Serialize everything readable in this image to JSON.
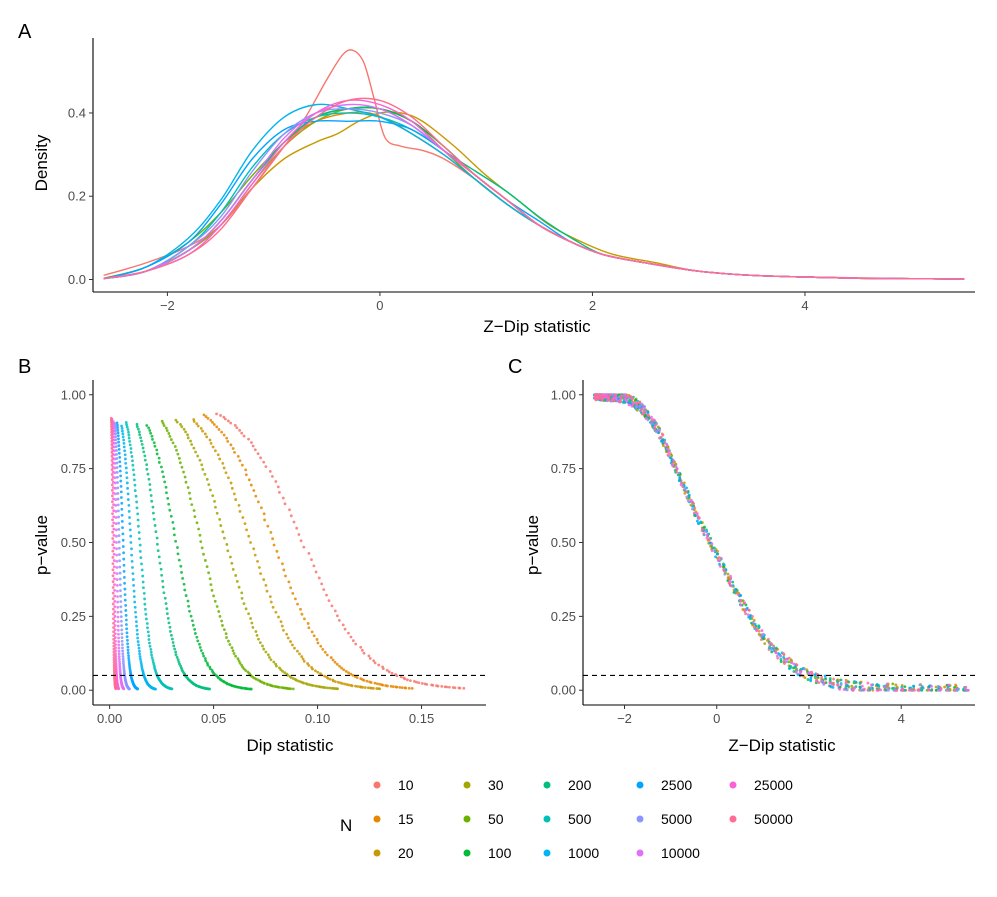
{
  "panels": {
    "a": "A",
    "b": "B",
    "c": "C"
  },
  "chart_data": [
    {
      "id": "A",
      "type": "line",
      "title": "",
      "xlabel": "Z−Dip statistic",
      "ylabel": "Density",
      "xlim": [
        -2.7,
        5.6
      ],
      "ylim": [
        -0.03,
        0.58
      ],
      "xticks": [
        -2,
        0,
        2,
        4
      ],
      "xtick_labels": [
        "−2",
        "0",
        "2",
        "4"
      ],
      "yticks": [
        0.0,
        0.2,
        0.4
      ],
      "ytick_labels": [
        "0.0",
        "0.2",
        "0.4"
      ],
      "grid": false,
      "series": [
        {
          "name": "10",
          "color": "#F8766D",
          "x": [
            -2.6,
            -2.2,
            -1.8,
            -1.5,
            -1.2,
            -0.9,
            -0.7,
            -0.5,
            -0.35,
            -0.25,
            -0.15,
            -0.05,
            0.05,
            0.2,
            0.4,
            0.6,
            0.9,
            1.2,
            1.5,
            1.8,
            2.1,
            2.5,
            3.0,
            3.5,
            4.0,
            4.5,
            5.0,
            5.5
          ],
          "y": [
            0.01,
            0.04,
            0.08,
            0.13,
            0.22,
            0.32,
            0.39,
            0.48,
            0.54,
            0.55,
            0.52,
            0.43,
            0.34,
            0.32,
            0.31,
            0.29,
            0.24,
            0.18,
            0.13,
            0.09,
            0.06,
            0.04,
            0.02,
            0.01,
            0.006,
            0.004,
            0.002,
            0.001
          ]
        },
        {
          "name": "15",
          "color": "#E58700",
          "x": [
            -2.6,
            -2.2,
            -1.8,
            -1.5,
            -1.2,
            -0.9,
            -0.6,
            -0.3,
            -0.1,
            0.1,
            0.3,
            0.6,
            0.9,
            1.2,
            1.5,
            1.8,
            2.1,
            2.5,
            3.0,
            3.5,
            4.0,
            4.5,
            5.0,
            5.5
          ],
          "y": [
            0.002,
            0.02,
            0.07,
            0.14,
            0.24,
            0.33,
            0.38,
            0.4,
            0.4,
            0.38,
            0.35,
            0.3,
            0.24,
            0.18,
            0.13,
            0.09,
            0.06,
            0.04,
            0.02,
            0.01,
            0.006,
            0.003,
            0.002,
            0.001
          ]
        },
        {
          "name": "20",
          "color": "#C99800",
          "x": [
            -2.6,
            -2.2,
            -1.8,
            -1.5,
            -1.2,
            -0.9,
            -0.6,
            -0.4,
            -0.2,
            0.0,
            0.2,
            0.4,
            0.7,
            1.0,
            1.3,
            1.6,
            1.9,
            2.2,
            2.6,
            3.0,
            3.5,
            4.0,
            4.5,
            5.0,
            5.5
          ],
          "y": [
            0.002,
            0.02,
            0.07,
            0.13,
            0.22,
            0.29,
            0.33,
            0.35,
            0.38,
            0.4,
            0.4,
            0.38,
            0.32,
            0.25,
            0.19,
            0.13,
            0.09,
            0.06,
            0.04,
            0.02,
            0.01,
            0.006,
            0.003,
            0.002,
            0.001
          ]
        },
        {
          "name": "30",
          "color": "#A3A500",
          "x": [
            -2.6,
            -2.2,
            -1.8,
            -1.5,
            -1.2,
            -0.9,
            -0.6,
            -0.3,
            0.0,
            0.3,
            0.6,
            0.9,
            1.2,
            1.5,
            1.8,
            2.1,
            2.5,
            3.0,
            3.5,
            4.0,
            4.5,
            5.0,
            5.5
          ],
          "y": [
            0.002,
            0.02,
            0.07,
            0.13,
            0.23,
            0.32,
            0.38,
            0.41,
            0.41,
            0.38,
            0.32,
            0.25,
            0.19,
            0.13,
            0.09,
            0.06,
            0.04,
            0.02,
            0.01,
            0.006,
            0.003,
            0.002,
            0.001
          ]
        },
        {
          "name": "50",
          "color": "#6BB100",
          "x": [
            -2.6,
            -2.2,
            -1.8,
            -1.5,
            -1.2,
            -0.9,
            -0.6,
            -0.3,
            0.0,
            0.3,
            0.6,
            0.9,
            1.2,
            1.5,
            1.8,
            2.1,
            2.5,
            3.0,
            3.5,
            4.0,
            4.5,
            5.0,
            5.5
          ],
          "y": [
            0.003,
            0.03,
            0.09,
            0.16,
            0.25,
            0.33,
            0.39,
            0.41,
            0.41,
            0.38,
            0.31,
            0.24,
            0.18,
            0.13,
            0.09,
            0.06,
            0.04,
            0.02,
            0.01,
            0.006,
            0.003,
            0.002,
            0.001
          ]
        },
        {
          "name": "100",
          "color": "#00BA38",
          "x": [
            -2.6,
            -2.2,
            -1.8,
            -1.5,
            -1.2,
            -0.9,
            -0.6,
            -0.3,
            0.0,
            0.3,
            0.6,
            0.9,
            1.2,
            1.5,
            1.8,
            2.1,
            2.5,
            3.0,
            3.5,
            4.0,
            4.5,
            5.0,
            5.5
          ],
          "y": [
            0.002,
            0.02,
            0.07,
            0.14,
            0.24,
            0.33,
            0.39,
            0.41,
            0.41,
            0.38,
            0.32,
            0.25,
            0.19,
            0.13,
            0.09,
            0.06,
            0.04,
            0.02,
            0.01,
            0.006,
            0.003,
            0.002,
            0.001
          ]
        },
        {
          "name": "200",
          "color": "#00BF7D",
          "x": [
            -2.6,
            -2.2,
            -1.8,
            -1.5,
            -1.2,
            -0.9,
            -0.6,
            -0.3,
            0.0,
            0.3,
            0.6,
            0.9,
            1.2,
            1.5,
            1.8,
            2.1,
            2.5,
            3.0,
            3.5,
            4.0,
            4.5,
            5.0,
            5.5
          ],
          "y": [
            0.002,
            0.02,
            0.07,
            0.14,
            0.24,
            0.33,
            0.39,
            0.41,
            0.41,
            0.37,
            0.31,
            0.26,
            0.21,
            0.15,
            0.1,
            0.06,
            0.04,
            0.02,
            0.01,
            0.006,
            0.003,
            0.002,
            0.001
          ]
        },
        {
          "name": "500",
          "color": "#00C0B8",
          "x": [
            -2.6,
            -2.2,
            -1.8,
            -1.5,
            -1.2,
            -0.9,
            -0.6,
            -0.3,
            0.0,
            0.3,
            0.6,
            0.9,
            1.2,
            1.5,
            1.8,
            2.1,
            2.5,
            3.0,
            3.5,
            4.0,
            4.5,
            5.0,
            5.5
          ],
          "y": [
            0.002,
            0.02,
            0.08,
            0.16,
            0.27,
            0.35,
            0.39,
            0.4,
            0.39,
            0.36,
            0.31,
            0.25,
            0.19,
            0.13,
            0.09,
            0.06,
            0.04,
            0.02,
            0.01,
            0.006,
            0.003,
            0.002,
            0.001
          ]
        },
        {
          "name": "1000",
          "color": "#00B4EF",
          "x": [
            -2.6,
            -2.2,
            -1.8,
            -1.5,
            -1.2,
            -0.9,
            -0.6,
            -0.3,
            0.0,
            0.3,
            0.6,
            0.9,
            1.2,
            1.5,
            1.8,
            2.1,
            2.5,
            3.0,
            3.5,
            4.0,
            4.5,
            5.0,
            5.5
          ],
          "y": [
            0.002,
            0.03,
            0.1,
            0.19,
            0.31,
            0.39,
            0.42,
            0.41,
            0.39,
            0.35,
            0.3,
            0.24,
            0.18,
            0.13,
            0.09,
            0.06,
            0.04,
            0.02,
            0.01,
            0.006,
            0.003,
            0.002,
            0.001
          ]
        },
        {
          "name": "2500",
          "color": "#00A5FF",
          "x": [
            -2.6,
            -2.2,
            -1.8,
            -1.5,
            -1.2,
            -0.9,
            -0.6,
            -0.3,
            0.0,
            0.3,
            0.6,
            0.9,
            1.2,
            1.5,
            1.8,
            2.1,
            2.5,
            3.0,
            3.5,
            4.0,
            4.5,
            5.0,
            5.5
          ],
          "y": [
            0.002,
            0.03,
            0.09,
            0.18,
            0.29,
            0.36,
            0.38,
            0.38,
            0.38,
            0.36,
            0.31,
            0.25,
            0.19,
            0.14,
            0.09,
            0.06,
            0.04,
            0.02,
            0.01,
            0.006,
            0.003,
            0.002,
            0.001
          ]
        },
        {
          "name": "5000",
          "color": "#8C94FF",
          "x": [
            -2.6,
            -2.2,
            -1.8,
            -1.5,
            -1.2,
            -0.9,
            -0.6,
            -0.3,
            0.0,
            0.3,
            0.6,
            0.9,
            1.2,
            1.5,
            1.8,
            2.1,
            2.5,
            3.0,
            3.5,
            4.0,
            4.5,
            5.0,
            5.5
          ],
          "y": [
            0.002,
            0.02,
            0.08,
            0.15,
            0.26,
            0.35,
            0.4,
            0.41,
            0.4,
            0.37,
            0.31,
            0.25,
            0.19,
            0.13,
            0.09,
            0.06,
            0.04,
            0.02,
            0.01,
            0.006,
            0.003,
            0.002,
            0.001
          ]
        },
        {
          "name": "10000",
          "color": "#DF70F8",
          "x": [
            -2.6,
            -2.2,
            -1.8,
            -1.5,
            -1.2,
            -0.9,
            -0.6,
            -0.3,
            0.0,
            0.3,
            0.6,
            0.9,
            1.2,
            1.5,
            1.8,
            2.1,
            2.5,
            3.0,
            3.5,
            4.0,
            4.5,
            5.0,
            5.5
          ],
          "y": [
            0.002,
            0.02,
            0.07,
            0.14,
            0.24,
            0.34,
            0.4,
            0.42,
            0.41,
            0.37,
            0.31,
            0.25,
            0.19,
            0.13,
            0.09,
            0.06,
            0.04,
            0.02,
            0.01,
            0.006,
            0.003,
            0.002,
            0.001
          ]
        },
        {
          "name": "25000",
          "color": "#FB61D7",
          "x": [
            -2.6,
            -2.2,
            -1.8,
            -1.5,
            -1.2,
            -0.9,
            -0.6,
            -0.3,
            0.0,
            0.3,
            0.6,
            0.9,
            1.2,
            1.5,
            1.8,
            2.1,
            2.5,
            3.0,
            3.5,
            4.0,
            4.5,
            5.0,
            5.5
          ],
          "y": [
            0.002,
            0.02,
            0.06,
            0.13,
            0.23,
            0.33,
            0.4,
            0.43,
            0.42,
            0.38,
            0.31,
            0.25,
            0.19,
            0.13,
            0.09,
            0.06,
            0.04,
            0.02,
            0.01,
            0.006,
            0.003,
            0.002,
            0.001
          ]
        },
        {
          "name": "50000",
          "color": "#FF6C91",
          "x": [
            -2.6,
            -2.2,
            -1.8,
            -1.5,
            -1.2,
            -0.9,
            -0.6,
            -0.3,
            0.0,
            0.3,
            0.6,
            0.9,
            1.2,
            1.5,
            1.8,
            2.1,
            2.5,
            3.0,
            3.5,
            4.0,
            4.5,
            5.0,
            5.5
          ],
          "y": [
            0.002,
            0.02,
            0.06,
            0.12,
            0.22,
            0.32,
            0.39,
            0.43,
            0.43,
            0.39,
            0.32,
            0.25,
            0.19,
            0.13,
            0.09,
            0.06,
            0.04,
            0.02,
            0.01,
            0.006,
            0.003,
            0.002,
            0.001
          ]
        }
      ]
    },
    {
      "id": "B",
      "type": "scatter",
      "title": "",
      "xlabel": "Dip statistic",
      "ylabel": "p−value",
      "xlim": [
        -0.008,
        0.181
      ],
      "ylim": [
        -0.05,
        1.05
      ],
      "xticks": [
        0.0,
        0.05,
        0.1,
        0.15
      ],
      "xtick_labels": [
        "0.00",
        "0.05",
        "0.10",
        "0.15"
      ],
      "yticks": [
        0.0,
        0.25,
        0.5,
        0.75,
        1.0
      ],
      "ytick_labels": [
        "0.00",
        "0.25",
        "0.50",
        "0.75",
        "1.00"
      ],
      "reference_line": {
        "y": 0.05,
        "style": "dashed"
      },
      "grid": false,
      "series": [
        {
          "name": "10",
          "color": "#F8766D",
          "start": 0.052,
          "end": 0.17,
          "mid": 0.093
        },
        {
          "name": "15",
          "color": "#E58700",
          "start": 0.045,
          "end": 0.145,
          "mid": 0.079
        },
        {
          "name": "20",
          "color": "#C99800",
          "start": 0.04,
          "end": 0.13,
          "mid": 0.068
        },
        {
          "name": "30",
          "color": "#A3A500",
          "start": 0.032,
          "end": 0.11,
          "mid": 0.056
        },
        {
          "name": "50",
          "color": "#6BB100",
          "start": 0.025,
          "end": 0.088,
          "mid": 0.044
        },
        {
          "name": "100",
          "color": "#00BA38",
          "start": 0.018,
          "end": 0.068,
          "mid": 0.032
        },
        {
          "name": "200",
          "color": "#00BF7D",
          "start": 0.013,
          "end": 0.048,
          "mid": 0.023
        },
        {
          "name": "500",
          "color": "#00C0B8",
          "start": 0.008,
          "end": 0.03,
          "mid": 0.0145
        },
        {
          "name": "1000",
          "color": "#00B4EF",
          "start": 0.0058,
          "end": 0.022,
          "mid": 0.0103
        },
        {
          "name": "2500",
          "color": "#00A5FF",
          "start": 0.0036,
          "end": 0.0135,
          "mid": 0.0065
        },
        {
          "name": "5000",
          "color": "#8C94FF",
          "start": 0.0026,
          "end": 0.0095,
          "mid": 0.0046
        },
        {
          "name": "10000",
          "color": "#DF70F8",
          "start": 0.0018,
          "end": 0.0068,
          "mid": 0.0033
        },
        {
          "name": "25000",
          "color": "#FB61D7",
          "start": 0.0011,
          "end": 0.0043,
          "mid": 0.0021
        },
        {
          "name": "50000",
          "color": "#FF6C91",
          "start": 0.0008,
          "end": 0.003,
          "mid": 0.0015
        }
      ]
    },
    {
      "id": "C",
      "type": "scatter",
      "title": "",
      "xlabel": "Z−Dip statistic",
      "ylabel": "p−value",
      "xlim": [
        -2.9,
        5.6
      ],
      "ylim": [
        -0.05,
        1.05
      ],
      "xticks": [
        -2,
        0,
        2,
        4
      ],
      "xtick_labels": [
        "−2",
        "0",
        "2",
        "4"
      ],
      "yticks": [
        0.0,
        0.25,
        0.5,
        0.75,
        1.0
      ],
      "ytick_labels": [
        "0.00",
        "0.25",
        "0.50",
        "0.75",
        "1.00"
      ],
      "reference_line": {
        "y": 0.05,
        "style": "dashed"
      },
      "grid": false,
      "curve": {
        "x": [
          -2.6,
          -2.2,
          -2.0,
          -1.8,
          -1.6,
          -1.4,
          -1.2,
          -1.0,
          -0.8,
          -0.6,
          -0.4,
          -0.2,
          0.0,
          0.2,
          0.4,
          0.6,
          0.8,
          1.0,
          1.2,
          1.5,
          1.8,
          2.0,
          2.3,
          2.6,
          3.0,
          3.5,
          4.0,
          4.5,
          5.0,
          5.5
        ],
        "y": [
          1.0,
          0.995,
          0.99,
          0.975,
          0.95,
          0.91,
          0.86,
          0.79,
          0.72,
          0.65,
          0.58,
          0.52,
          0.46,
          0.4,
          0.34,
          0.28,
          0.23,
          0.18,
          0.14,
          0.1,
          0.065,
          0.05,
          0.035,
          0.022,
          0.013,
          0.007,
          0.004,
          0.002,
          0.001,
          0.0
        ]
      }
    }
  ],
  "legend": {
    "title": "N",
    "entries": [
      {
        "label": "10",
        "color": "#F8766D"
      },
      {
        "label": "15",
        "color": "#E58700"
      },
      {
        "label": "20",
        "color": "#C99800"
      },
      {
        "label": "30",
        "color": "#A3A500"
      },
      {
        "label": "50",
        "color": "#6BB100"
      },
      {
        "label": "100",
        "color": "#00BA38"
      },
      {
        "label": "200",
        "color": "#00BF7D"
      },
      {
        "label": "500",
        "color": "#00C0B8"
      },
      {
        "label": "1000",
        "color": "#00B4EF"
      },
      {
        "label": "2500",
        "color": "#00A5FF"
      },
      {
        "label": "5000",
        "color": "#8C94FF"
      },
      {
        "label": "10000",
        "color": "#DF70F8"
      },
      {
        "label": "25000",
        "color": "#FB61D7"
      },
      {
        "label": "50000",
        "color": "#FF6C91"
      }
    ]
  }
}
